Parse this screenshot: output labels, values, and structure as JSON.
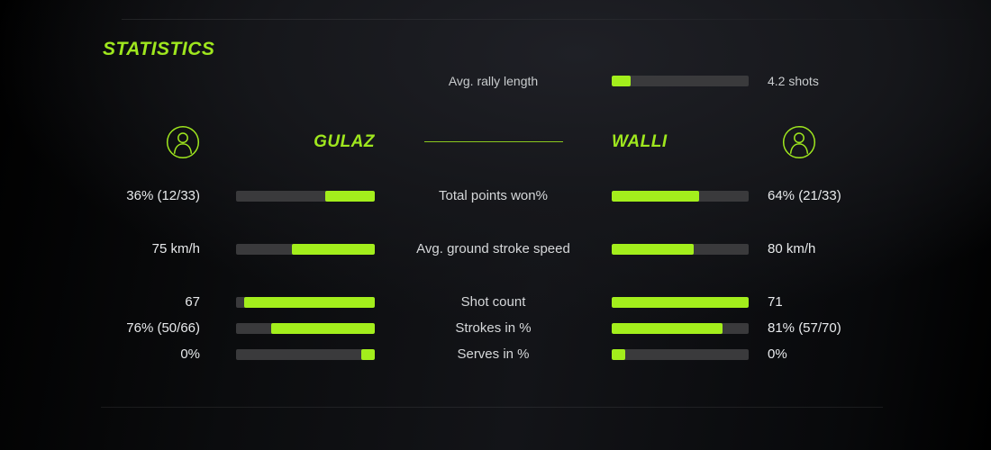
{
  "colors": {
    "accent": "#9FE71E",
    "bar_fill": "#A3EE1C",
    "bar_track": "#3A3A3C"
  },
  "page": {
    "title": "STATISTICS"
  },
  "icons": {
    "left_player": "person-icon",
    "right_player": "person-icon"
  },
  "chart_data": {
    "type": "bar",
    "orientation": "horizontal-paired",
    "title": "STATISTICS",
    "legend_position": "header-row",
    "players": {
      "left": "GULAZ",
      "right": "WALLI"
    },
    "summary": {
      "label": "Avg. rally length",
      "value_text": "4.2 shots",
      "value": 4.2,
      "fill_pct": 14
    },
    "rows": [
      {
        "label": "Total points won%",
        "left": {
          "text": "36% (12/33)",
          "value": 36,
          "fill_pct": 36
        },
        "right": {
          "text": "64% (21/33)",
          "value": 64,
          "fill_pct": 64
        }
      },
      {
        "label": "Avg. ground stroke speed",
        "left": {
          "text": "75 km/h",
          "value": 75,
          "fill_pct": 60
        },
        "right": {
          "text": "80 km/h",
          "value": 80,
          "fill_pct": 60
        }
      },
      {
        "label": "Shot count",
        "left": {
          "text": "67",
          "value": 67,
          "fill_pct": 94
        },
        "right": {
          "text": "71",
          "value": 71,
          "fill_pct": 100
        }
      },
      {
        "label": "Strokes in %",
        "left": {
          "text": "76% (50/66)",
          "value": 76,
          "fill_pct": 75
        },
        "right": {
          "text": "81% (57/70)",
          "value": 81,
          "fill_pct": 81
        }
      },
      {
        "label": "Serves in %",
        "left": {
          "text": "0%",
          "value": 0,
          "fill_pct": 10
        },
        "right": {
          "text": "0%",
          "value": 0,
          "fill_pct": 10
        }
      }
    ]
  }
}
